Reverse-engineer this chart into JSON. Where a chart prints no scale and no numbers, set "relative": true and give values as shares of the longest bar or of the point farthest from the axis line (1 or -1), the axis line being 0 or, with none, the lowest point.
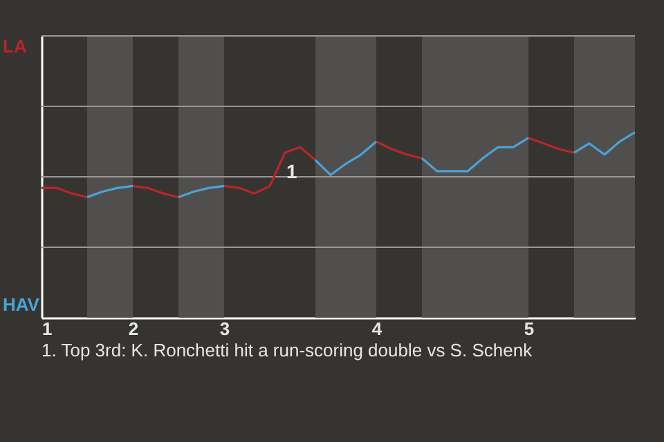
{
  "chart_data": {
    "type": "line",
    "relative": true,
    "categories": [
      "1",
      null,
      null,
      null,
      null,
      null,
      "2",
      null,
      null,
      null,
      null,
      null,
      "3",
      null,
      null,
      null,
      null,
      null,
      null,
      null,
      null,
      null,
      "4",
      null,
      null,
      null,
      null,
      null,
      null,
      null,
      null,
      null,
      "5",
      null,
      null,
      null,
      null,
      null,
      null,
      null
    ],
    "series": [
      {
        "name": "LA",
        "color": "#b8262a",
        "values": [
          0.7,
          0.7,
          0.67,
          0.65,
          null,
          null,
          0.71,
          0.7,
          0.67,
          0.65,
          null,
          null,
          0.71,
          0.7,
          0.67,
          0.71,
          0.89,
          0.92,
          0.85,
          null,
          null,
          null,
          0.95,
          0.91,
          0.88,
          0.86,
          null,
          null,
          null,
          null,
          null,
          null,
          0.97,
          0.94,
          0.91,
          0.89,
          null,
          null,
          null,
          null
        ]
      },
      {
        "name": "HAV",
        "color": "#4aa3d8",
        "values": [
          null,
          null,
          null,
          0.65,
          0.68,
          0.7,
          0.71,
          null,
          null,
          0.65,
          0.68,
          0.7,
          0.71,
          null,
          null,
          null,
          null,
          null,
          0.85,
          0.77,
          0.83,
          0.88,
          0.95,
          null,
          null,
          0.86,
          0.79,
          0.79,
          0.79,
          0.86,
          0.92,
          0.92,
          0.97,
          null,
          null,
          0.89,
          0.94,
          0.88,
          0.95,
          1.0
        ]
      }
    ],
    "ref_lines": [
      {
        "axis": "y",
        "value": 0.38,
        "color": "#9a9896"
      },
      {
        "axis": "y",
        "value": 0.76,
        "color": "#9a9896"
      },
      {
        "axis": "y",
        "value": 1.14,
        "color": "#9a9896"
      },
      {
        "axis": "y",
        "value": 1.52,
        "color": "#9a9896"
      }
    ],
    "annotations": [
      "1",
      "1. Top 3rd: K. Ronchetti hit a run-scoring double vs S. Schenk"
    ]
  }
}
